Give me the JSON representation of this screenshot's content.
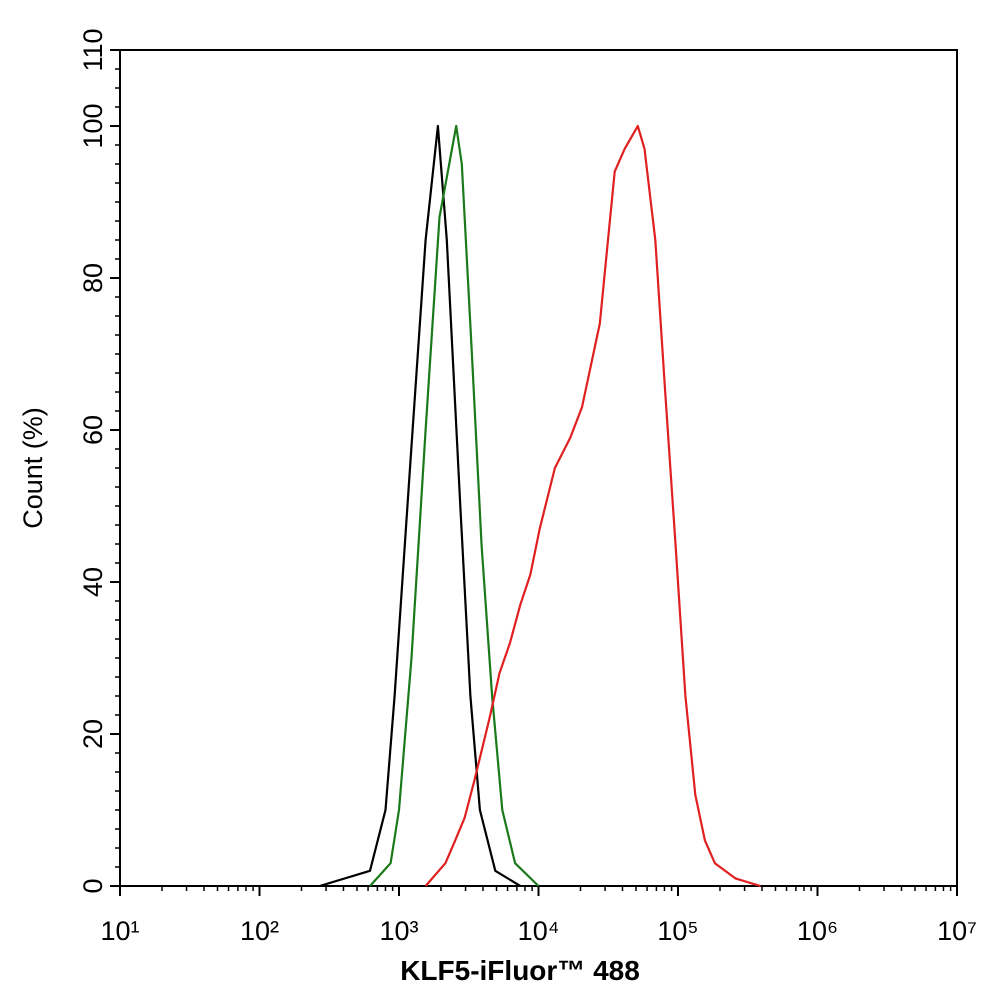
{
  "chart_data": {
    "type": "line",
    "x_label": "KLF5-iFluor™ 488",
    "y_label": "Count  (%)",
    "x_scale": "log",
    "xlim": [
      10,
      10000000
    ],
    "xticks": [
      {
        "value": 10,
        "label": "10¹"
      },
      {
        "value": 100,
        "label": "10²"
      },
      {
        "value": 1000,
        "label": "10³"
      },
      {
        "value": 10000,
        "label": "10⁴"
      },
      {
        "value": 100000,
        "label": "10⁵"
      },
      {
        "value": 1000000,
        "label": "10⁶"
      },
      {
        "value": 10000000,
        "label": "10⁷"
      }
    ],
    "ylim": [
      0,
      110
    ],
    "yticks": [
      0,
      20,
      40,
      60,
      80,
      100,
      110
    ],
    "series": [
      {
        "color": "#000000",
        "x": [
          270,
          620,
          800,
          930,
          1200,
          1550,
          1900,
          2200,
          2750,
          3250,
          3800,
          4900,
          7400
        ],
        "values": [
          0,
          2,
          10,
          25,
          55,
          85,
          100,
          85,
          50,
          25,
          10,
          2,
          0
        ]
      },
      {
        "color": "#1a7a1a",
        "x": [
          620,
          870,
          1000,
          1230,
          1550,
          1950,
          2570,
          2820,
          3330,
          3900,
          4650,
          5500,
          6800,
          10000
        ],
        "values": [
          0,
          3,
          10,
          30,
          60,
          88,
          100,
          95,
          70,
          45,
          25,
          10,
          3,
          0
        ]
      },
      {
        "color": "#e02020",
        "x": [
          1550,
          2150,
          2530,
          2960,
          3480,
          4450,
          5250,
          6250,
          7400,
          8750,
          10200,
          13100,
          16900,
          20500,
          27500,
          35200,
          41500,
          51500,
          57500,
          68700,
          81000,
          96000,
          113000,
          133000,
          156000,
          184000,
          258000,
          390000
        ],
        "values": [
          0,
          3,
          6,
          9,
          14,
          22,
          28,
          32,
          37,
          41,
          47,
          55,
          59,
          63,
          74,
          94,
          97,
          100,
          97,
          85,
          65,
          45,
          25,
          12,
          6,
          3,
          1,
          0
        ]
      }
    ]
  }
}
